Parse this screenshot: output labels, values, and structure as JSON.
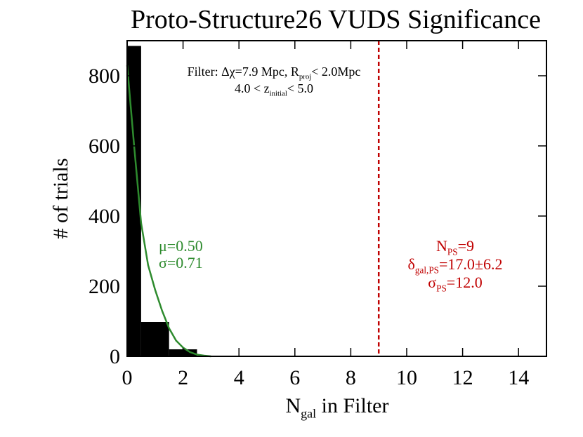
{
  "chart_data": {
    "type": "histogram",
    "title": "Proto-Structure26 VUDS Significance",
    "x_label": [
      "N",
      "gal",
      " in Filter"
    ],
    "y_label": "# of trials",
    "bins": [
      0,
      0.5,
      1.5,
      2.5,
      3.5
    ],
    "counts": [
      885,
      98,
      20,
      2
    ],
    "color": "#000000",
    "fit": {
      "color": "#2e8b2e",
      "x": [
        0,
        0.25,
        0.5,
        0.75,
        1,
        1.25,
        1.5,
        1.75,
        2,
        2.25,
        2.5,
        2.75,
        3
      ],
      "values": [
        830,
        600,
        380,
        260,
        190,
        130,
        80,
        45,
        25,
        12,
        5,
        2,
        0
      ]
    },
    "marker_line": {
      "x": 9,
      "color": "#c00000"
    },
    "xlim": [
      0,
      15
    ],
    "ylim": [
      0,
      900
    ],
    "xticks": [
      0,
      2,
      4,
      6,
      8,
      10,
      12,
      14
    ],
    "yticks": [
      0,
      200,
      400,
      600,
      800
    ],
    "annotations": {
      "filter": [
        [
          "Filter: Δχ=7.9 Mpc, R",
          "proj",
          "< 2.0Mpc"
        ],
        [
          "4.0 < z",
          "initial",
          "< 5.0"
        ]
      ],
      "fit": [
        [
          "μ=0.50"
        ],
        [
          "σ=0.71"
        ]
      ],
      "structure": [
        [
          "N",
          "PS",
          "=9"
        ],
        [
          "δ",
          "gal,PS",
          "=17.0±6.2"
        ],
        [
          "σ",
          "PS",
          "=12.0"
        ]
      ]
    }
  }
}
